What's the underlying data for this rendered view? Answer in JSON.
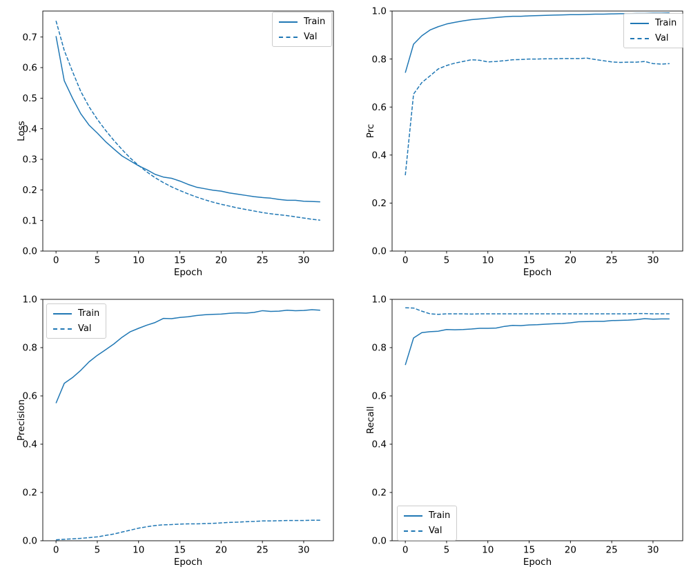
{
  "figure": {
    "description": "Training and validation metric curves over epochs",
    "line_color": "#1f77b4",
    "background_color": "#ffffff"
  },
  "legend": {
    "train_label": "Train",
    "val_label": "Val"
  },
  "chart_data": [
    {
      "type": "line",
      "title": "",
      "xlabel": "Epoch",
      "ylabel": "Loss",
      "xlim": [
        -1.6,
        33.6
      ],
      "ylim": [
        0,
        0.785
      ],
      "grid": false,
      "legend_position": "upper right",
      "xticks": [
        0,
        5,
        10,
        15,
        20,
        25,
        30
      ],
      "yticks": [
        0.0,
        0.1,
        0.2,
        0.3,
        0.4,
        0.5,
        0.6,
        0.7
      ],
      "ytick_labels": [
        "0.0",
        "0.1",
        "0.2",
        "0.3",
        "0.4",
        "0.5",
        "0.6",
        "0.7"
      ],
      "x": [
        0,
        1,
        2,
        3,
        4,
        5,
        6,
        7,
        8,
        9,
        10,
        11,
        12,
        13,
        14,
        15,
        16,
        17,
        18,
        19,
        20,
        21,
        22,
        23,
        24,
        25,
        26,
        27,
        28,
        29,
        30,
        31,
        32
      ],
      "series": [
        {
          "name": "Train",
          "style": "solid",
          "values": [
            0.703,
            0.557,
            0.5,
            0.449,
            0.412,
            0.386,
            0.358,
            0.334,
            0.311,
            0.295,
            0.279,
            0.266,
            0.251,
            0.242,
            0.238,
            0.229,
            0.218,
            0.209,
            0.204,
            0.199,
            0.196,
            0.19,
            0.186,
            0.182,
            0.178,
            0.175,
            0.173,
            0.169,
            0.166,
            0.166,
            0.163,
            0.162,
            0.161
          ]
        },
        {
          "name": "Val",
          "style": "dashed",
          "values": [
            0.753,
            0.656,
            0.587,
            0.522,
            0.472,
            0.431,
            0.395,
            0.362,
            0.332,
            0.304,
            0.28,
            0.259,
            0.24,
            0.224,
            0.21,
            0.198,
            0.187,
            0.177,
            0.168,
            0.16,
            0.153,
            0.147,
            0.141,
            0.136,
            0.131,
            0.126,
            0.122,
            0.119,
            0.116,
            0.112,
            0.108,
            0.104,
            0.101
          ]
        }
      ]
    },
    {
      "type": "line",
      "title": "",
      "xlabel": "Epoch",
      "ylabel": "Prc",
      "xlim": [
        -1.6,
        33.6
      ],
      "ylim": [
        0,
        1.0
      ],
      "grid": false,
      "legend_position": "upper right",
      "xticks": [
        0,
        5,
        10,
        15,
        20,
        25,
        30
      ],
      "yticks": [
        0.0,
        0.2,
        0.4,
        0.6,
        0.8,
        1.0
      ],
      "ytick_labels": [
        "0.0",
        "0.2",
        "0.4",
        "0.6",
        "0.8",
        "1.0"
      ],
      "x": [
        0,
        1,
        2,
        3,
        4,
        5,
        6,
        7,
        8,
        9,
        10,
        11,
        12,
        13,
        14,
        15,
        16,
        17,
        18,
        19,
        20,
        21,
        22,
        23,
        24,
        25,
        26,
        27,
        28,
        29,
        30,
        31,
        32
      ],
      "series": [
        {
          "name": "Train",
          "style": "solid",
          "values": [
            0.743,
            0.862,
            0.897,
            0.921,
            0.935,
            0.946,
            0.953,
            0.959,
            0.964,
            0.967,
            0.97,
            0.973,
            0.976,
            0.978,
            0.978,
            0.98,
            0.981,
            0.982,
            0.983,
            0.984,
            0.985,
            0.985,
            0.986,
            0.987,
            0.987,
            0.988,
            0.989,
            0.989,
            0.99,
            0.99,
            0.991,
            0.991,
            0.992
          ]
        },
        {
          "name": "Val",
          "style": "dashed",
          "values": [
            0.316,
            0.654,
            0.702,
            0.73,
            0.759,
            0.773,
            0.783,
            0.79,
            0.797,
            0.795,
            0.788,
            0.79,
            0.793,
            0.797,
            0.798,
            0.8,
            0.8,
            0.801,
            0.801,
            0.802,
            0.802,
            0.802,
            0.804,
            0.798,
            0.793,
            0.788,
            0.786,
            0.787,
            0.787,
            0.79,
            0.781,
            0.779,
            0.781
          ]
        }
      ]
    },
    {
      "type": "line",
      "title": "",
      "xlabel": "Epoch",
      "ylabel": "Precision",
      "xlim": [
        -1.6,
        33.6
      ],
      "ylim": [
        0,
        1.0
      ],
      "grid": false,
      "legend_position": "upper left",
      "xticks": [
        0,
        5,
        10,
        15,
        20,
        25,
        30
      ],
      "yticks": [
        0.0,
        0.2,
        0.4,
        0.6,
        0.8,
        1.0
      ],
      "ytick_labels": [
        "0.0",
        "0.2",
        "0.4",
        "0.6",
        "0.8",
        "1.0"
      ],
      "x": [
        0,
        1,
        2,
        3,
        4,
        5,
        6,
        7,
        8,
        9,
        10,
        11,
        12,
        13,
        14,
        15,
        16,
        17,
        18,
        19,
        20,
        21,
        22,
        23,
        24,
        25,
        26,
        27,
        28,
        29,
        30,
        31,
        32
      ],
      "series": [
        {
          "name": "Train",
          "style": "solid",
          "values": [
            0.57,
            0.652,
            0.676,
            0.706,
            0.741,
            0.768,
            0.791,
            0.815,
            0.843,
            0.866,
            0.88,
            0.893,
            0.904,
            0.921,
            0.92,
            0.925,
            0.928,
            0.933,
            0.936,
            0.938,
            0.939,
            0.942,
            0.944,
            0.943,
            0.946,
            0.953,
            0.95,
            0.951,
            0.955,
            0.953,
            0.954,
            0.957,
            0.955
          ]
        },
        {
          "name": "Val",
          "style": "dashed",
          "values": [
            0.004,
            0.006,
            0.008,
            0.01,
            0.013,
            0.016,
            0.022,
            0.028,
            0.036,
            0.044,
            0.052,
            0.058,
            0.063,
            0.066,
            0.067,
            0.069,
            0.07,
            0.07,
            0.071,
            0.072,
            0.074,
            0.076,
            0.077,
            0.079,
            0.08,
            0.082,
            0.082,
            0.083,
            0.084,
            0.084,
            0.084,
            0.085,
            0.085
          ]
        }
      ]
    },
    {
      "type": "line",
      "title": "",
      "xlabel": "Epoch",
      "ylabel": "Recall",
      "xlim": [
        -1.6,
        33.6
      ],
      "ylim": [
        0,
        1.0
      ],
      "grid": false,
      "legend_position": "lower left",
      "xticks": [
        0,
        5,
        10,
        15,
        20,
        25,
        30
      ],
      "yticks": [
        0.0,
        0.2,
        0.4,
        0.6,
        0.8,
        1.0
      ],
      "ytick_labels": [
        "0.0",
        "0.2",
        "0.4",
        "0.6",
        "0.8",
        "1.0"
      ],
      "x": [
        0,
        1,
        2,
        3,
        4,
        5,
        6,
        7,
        8,
        9,
        10,
        11,
        12,
        13,
        14,
        15,
        16,
        17,
        18,
        19,
        20,
        21,
        22,
        23,
        24,
        25,
        26,
        27,
        28,
        29,
        30,
        31,
        32
      ],
      "series": [
        {
          "name": "Train",
          "style": "solid",
          "values": [
            0.728,
            0.84,
            0.862,
            0.866,
            0.868,
            0.875,
            0.874,
            0.875,
            0.877,
            0.88,
            0.88,
            0.881,
            0.888,
            0.892,
            0.891,
            0.894,
            0.895,
            0.897,
            0.899,
            0.9,
            0.903,
            0.907,
            0.908,
            0.909,
            0.909,
            0.912,
            0.913,
            0.914,
            0.916,
            0.92,
            0.918,
            0.919,
            0.919
          ]
        },
        {
          "name": "Val",
          "style": "dashed",
          "values": [
            0.965,
            0.964,
            0.951,
            0.94,
            0.938,
            0.94,
            0.94,
            0.94,
            0.939,
            0.94,
            0.94,
            0.94,
            0.94,
            0.94,
            0.94,
            0.94,
            0.94,
            0.94,
            0.94,
            0.94,
            0.94,
            0.94,
            0.94,
            0.94,
            0.94,
            0.94,
            0.94,
            0.94,
            0.941,
            0.941,
            0.94,
            0.94,
            0.94
          ]
        }
      ]
    }
  ]
}
